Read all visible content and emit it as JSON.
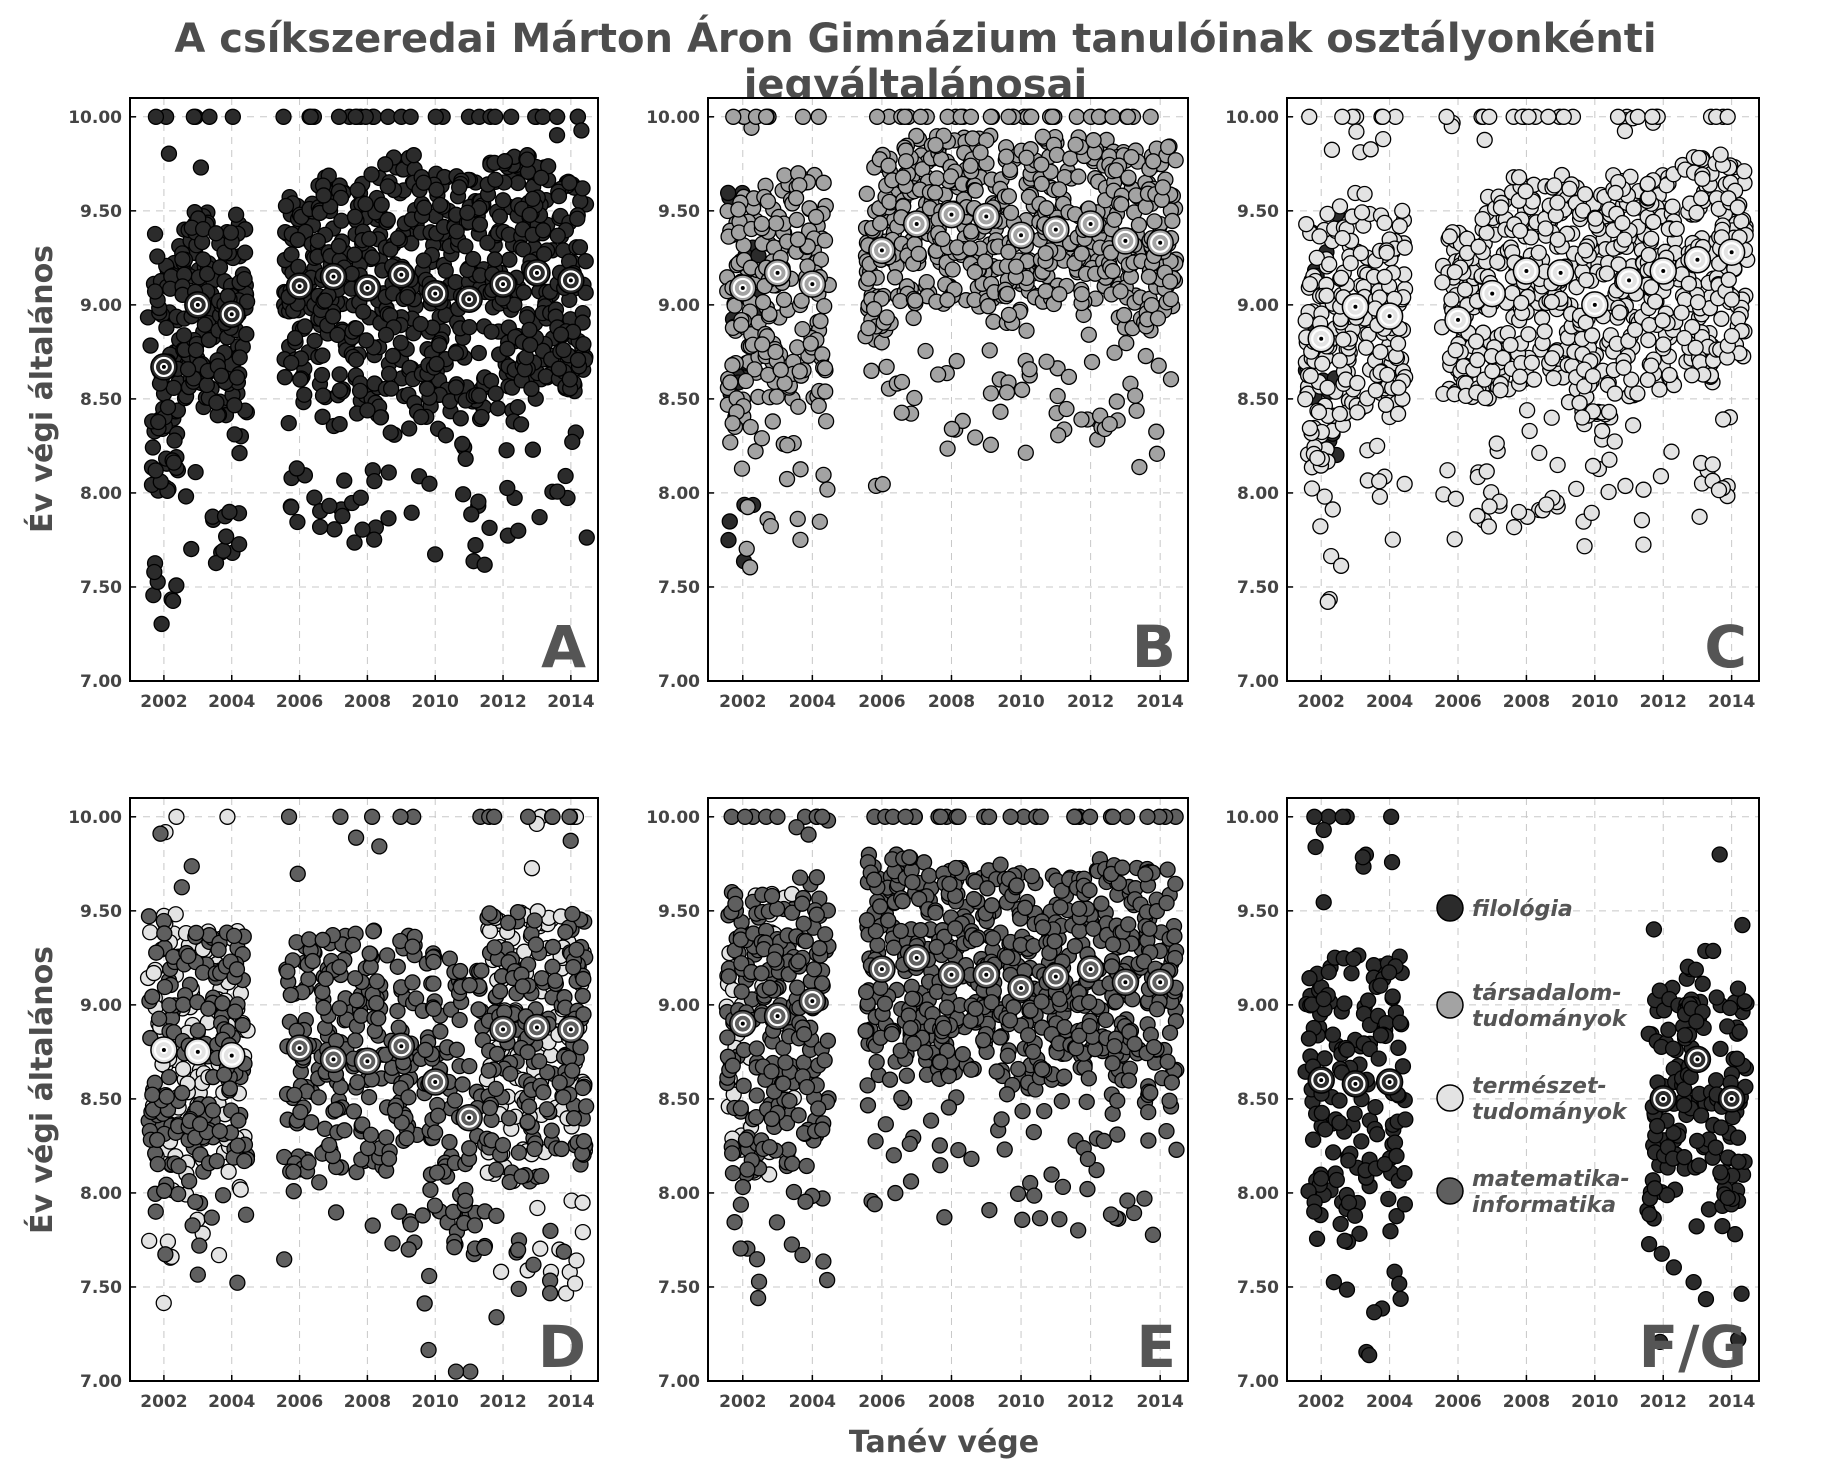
{
  "title": "A csíkszeredai Márton Áron Gimnázium tanulóinak osztályonkénti jegyáltalánosai",
  "ylabel": "Év végi általános",
  "xlabel": "Tanév vége",
  "colors": {
    "filologia": "#2b2b2b",
    "tarsadalom": "#a3a3a3",
    "termeszet": "#e3e3e3",
    "matek": "#5f5f5f"
  },
  "legend": {
    "placement": "inside panel F/G, center",
    "items": [
      {
        "key": "filologia",
        "lines": [
          "filológia"
        ]
      },
      {
        "key": "tarsadalom",
        "lines": [
          "társadalom-",
          "tudományok"
        ]
      },
      {
        "key": "termeszet",
        "lines": [
          "természet-",
          "tudományok"
        ]
      },
      {
        "key": "matek",
        "lines": [
          "matematika-",
          "informatika"
        ]
      }
    ]
  },
  "chart_data": [
    {
      "type": "scatter",
      "panel": "A",
      "xlim": [
        2001,
        2014.8
      ],
      "ylim": [
        7.0,
        10.1
      ],
      "xticks": [
        "2002",
        "2004",
        "2006",
        "2008",
        "2010",
        "2012",
        "2014"
      ],
      "yticks": [
        "7.00",
        "7.50",
        "8.00",
        "8.50",
        "9.00",
        "9.50",
        "10.00"
      ],
      "grid": true,
      "year_spread": {
        "2002": [
          8.0,
          9.4
        ],
        "2003": [
          8.5,
          9.5
        ],
        "2004": [
          8.4,
          9.5
        ],
        "2006": [
          8.6,
          9.6
        ],
        "2007": [
          8.5,
          9.7
        ],
        "2008": [
          8.4,
          9.7
        ],
        "2009": [
          8.5,
          9.8
        ],
        "2010": [
          8.4,
          9.7
        ],
        "2011": [
          8.4,
          9.7
        ],
        "2012": [
          8.5,
          9.8
        ],
        "2013": [
          8.6,
          9.8
        ],
        "2014": [
          8.5,
          9.7
        ]
      },
      "groups": [
        {
          "key": "filologia",
          "years": [
            2002,
            2003,
            2004,
            2006,
            2007,
            2008,
            2009,
            2010,
            2011,
            2012,
            2013,
            2014
          ],
          "count_per_year": 90
        }
      ],
      "means": [
        {
          "x": 2002,
          "y": 8.67,
          "key": "filologia"
        },
        {
          "x": 2003,
          "y": 9.0,
          "key": "filologia"
        },
        {
          "x": 2004,
          "y": 8.95,
          "key": "filologia"
        },
        {
          "x": 2006,
          "y": 9.1,
          "key": "filologia"
        },
        {
          "x": 2007,
          "y": 9.15,
          "key": "filologia"
        },
        {
          "x": 2008,
          "y": 9.09,
          "key": "filologia"
        },
        {
          "x": 2009,
          "y": 9.16,
          "key": "filologia"
        },
        {
          "x": 2010,
          "y": 9.06,
          "key": "filologia"
        },
        {
          "x": 2011,
          "y": 9.03,
          "key": "filologia"
        },
        {
          "x": 2012,
          "y": 9.11,
          "key": "filologia"
        },
        {
          "x": 2013,
          "y": 9.17,
          "key": "filologia"
        },
        {
          "x": 2014,
          "y": 9.13,
          "key": "filologia"
        }
      ]
    },
    {
      "type": "scatter",
      "panel": "B",
      "xlim": [
        2001,
        2014.8
      ],
      "ylim": [
        7.0,
        10.1
      ],
      "xticks": [
        "2002",
        "2004",
        "2006",
        "2008",
        "2010",
        "2012",
        "2014"
      ],
      "yticks": [
        "7.00",
        "7.50",
        "8.00",
        "8.50",
        "9.00",
        "9.50",
        "10.00"
      ],
      "grid": true,
      "year_spread": {
        "2002": [
          8.4,
          9.6
        ],
        "2003": [
          8.5,
          9.7
        ],
        "2004": [
          8.5,
          9.7
        ],
        "2006": [
          8.8,
          9.8
        ],
        "2007": [
          9.0,
          9.9
        ],
        "2008": [
          9.0,
          9.9
        ],
        "2009": [
          9.0,
          9.9
        ],
        "2010": [
          8.9,
          9.85
        ],
        "2011": [
          9.0,
          9.9
        ],
        "2012": [
          9.0,
          9.9
        ],
        "2013": [
          8.9,
          9.85
        ],
        "2014": [
          8.9,
          9.85
        ]
      },
      "groups": [
        {
          "key": "filologia",
          "years": [
            2002
          ],
          "count_per_year": 25
        },
        {
          "key": "tarsadalom",
          "years": [
            2002,
            2003,
            2004,
            2006,
            2007,
            2008,
            2009,
            2010,
            2011,
            2012,
            2013,
            2014
          ],
          "count_per_year": 80
        }
      ],
      "means": [
        {
          "x": 2002,
          "y": 9.09,
          "key": "tarsadalom"
        },
        {
          "x": 2003,
          "y": 9.17,
          "key": "tarsadalom"
        },
        {
          "x": 2004,
          "y": 9.11,
          "key": "tarsadalom"
        },
        {
          "x": 2006,
          "y": 9.29,
          "key": "tarsadalom"
        },
        {
          "x": 2007,
          "y": 9.43,
          "key": "tarsadalom"
        },
        {
          "x": 2008,
          "y": 9.48,
          "key": "tarsadalom"
        },
        {
          "x": 2009,
          "y": 9.47,
          "key": "tarsadalom"
        },
        {
          "x": 2010,
          "y": 9.37,
          "key": "tarsadalom"
        },
        {
          "x": 2011,
          "y": 9.4,
          "key": "tarsadalom"
        },
        {
          "x": 2012,
          "y": 9.43,
          "key": "tarsadalom"
        },
        {
          "x": 2013,
          "y": 9.34,
          "key": "tarsadalom"
        },
        {
          "x": 2014,
          "y": 9.33,
          "key": "tarsadalom"
        }
      ]
    },
    {
      "type": "scatter",
      "panel": "C",
      "xlim": [
        2001,
        2014.8
      ],
      "ylim": [
        7.0,
        10.1
      ],
      "xticks": [
        "2002",
        "2004",
        "2006",
        "2008",
        "2010",
        "2012",
        "2014"
      ],
      "yticks": [
        "7.00",
        "7.50",
        "8.00",
        "8.50",
        "9.00",
        "9.50",
        "10.00"
      ],
      "grid": true,
      "year_spread": {
        "2002": [
          8.1,
          9.5
        ],
        "2003": [
          8.4,
          9.6
        ],
        "2004": [
          8.4,
          9.5
        ],
        "2006": [
          8.5,
          9.4
        ],
        "2007": [
          8.5,
          9.6
        ],
        "2008": [
          8.6,
          9.7
        ],
        "2009": [
          8.6,
          9.7
        ],
        "2010": [
          8.4,
          9.6
        ],
        "2011": [
          8.5,
          9.7
        ],
        "2012": [
          8.6,
          9.7
        ],
        "2013": [
          8.6,
          9.8
        ],
        "2014": [
          8.7,
          9.8
        ]
      },
      "groups": [
        {
          "key": "filologia",
          "years": [
            2002
          ],
          "count_per_year": 20
        },
        {
          "key": "termeszet",
          "years": [
            2002,
            2003,
            2004,
            2006,
            2007,
            2008,
            2009,
            2010,
            2011,
            2012,
            2013,
            2014
          ],
          "count_per_year": 85
        }
      ],
      "means": [
        {
          "x": 2002,
          "y": 8.82,
          "key": "termeszet"
        },
        {
          "x": 2003,
          "y": 8.99,
          "key": "termeszet"
        },
        {
          "x": 2004,
          "y": 8.94,
          "key": "termeszet"
        },
        {
          "x": 2006,
          "y": 8.92,
          "key": "termeszet"
        },
        {
          "x": 2007,
          "y": 9.06,
          "key": "termeszet"
        },
        {
          "x": 2008,
          "y": 9.18,
          "key": "termeszet"
        },
        {
          "x": 2009,
          "y": 9.17,
          "key": "termeszet"
        },
        {
          "x": 2010,
          "y": 9.0,
          "key": "termeszet"
        },
        {
          "x": 2011,
          "y": 9.13,
          "key": "termeszet"
        },
        {
          "x": 2012,
          "y": 9.18,
          "key": "termeszet"
        },
        {
          "x": 2013,
          "y": 9.24,
          "key": "termeszet"
        },
        {
          "x": 2014,
          "y": 9.28,
          "key": "termeszet"
        }
      ]
    },
    {
      "type": "scatter",
      "panel": "D",
      "xlim": [
        2001,
        2014.8
      ],
      "ylim": [
        7.0,
        10.1
      ],
      "xticks": [
        "2002",
        "2004",
        "2006",
        "2008",
        "2010",
        "2012",
        "2014"
      ],
      "yticks": [
        "7.00",
        "7.50",
        "8.00",
        "8.50",
        "9.00",
        "9.50",
        "10.00"
      ],
      "grid": true,
      "year_spread": {
        "2002": [
          8.0,
          9.5
        ],
        "2003": [
          8.1,
          9.4
        ],
        "2004": [
          8.1,
          9.4
        ],
        "2006": [
          8.1,
          9.4
        ],
        "2007": [
          8.1,
          9.4
        ],
        "2008": [
          8.1,
          9.4
        ],
        "2009": [
          8.1,
          9.4
        ],
        "2010": [
          7.9,
          9.3
        ],
        "2011": [
          7.7,
          9.2
        ],
        "2012": [
          8.1,
          9.5
        ],
        "2013": [
          8.2,
          9.5
        ],
        "2014": [
          8.2,
          9.5
        ]
      },
      "groups": [
        {
          "key": "termeszet",
          "years": [
            2002,
            2003,
            2004,
            2012,
            2013,
            2014
          ],
          "count_per_year": 45
        },
        {
          "key": "matek",
          "years": [
            2002,
            2003,
            2004,
            2006,
            2007,
            2008,
            2009,
            2010,
            2011,
            2012,
            2013,
            2014
          ],
          "count_per_year": 60
        }
      ],
      "means": [
        {
          "x": 2002,
          "y": 8.76,
          "key": "termeszet"
        },
        {
          "x": 2003,
          "y": 8.75,
          "key": "termeszet"
        },
        {
          "x": 2004,
          "y": 8.73,
          "key": "termeszet"
        },
        {
          "x": 2006,
          "y": 8.77,
          "key": "matek"
        },
        {
          "x": 2007,
          "y": 8.71,
          "key": "matek"
        },
        {
          "x": 2008,
          "y": 8.7,
          "key": "matek"
        },
        {
          "x": 2009,
          "y": 8.78,
          "key": "matek"
        },
        {
          "x": 2010,
          "y": 8.59,
          "key": "matek"
        },
        {
          "x": 2011,
          "y": 8.4,
          "key": "matek"
        },
        {
          "x": 2012,
          "y": 8.87,
          "key": "matek"
        },
        {
          "x": 2013,
          "y": 8.88,
          "key": "matek"
        },
        {
          "x": 2014,
          "y": 8.87,
          "key": "matek"
        }
      ]
    },
    {
      "type": "scatter",
      "panel": "E",
      "xlim": [
        2001,
        2014.8
      ],
      "ylim": [
        7.0,
        10.1
      ],
      "xticks": [
        "2002",
        "2004",
        "2006",
        "2008",
        "2010",
        "2012",
        "2014"
      ],
      "yticks": [
        "7.00",
        "7.50",
        "8.00",
        "8.50",
        "9.00",
        "9.50",
        "10.00"
      ],
      "grid": true,
      "year_spread": {
        "2002": [
          8.1,
          9.6
        ],
        "2003": [
          8.2,
          9.6
        ],
        "2004": [
          8.3,
          9.7
        ],
        "2006": [
          8.6,
          9.8
        ],
        "2007": [
          8.7,
          9.8
        ],
        "2008": [
          8.6,
          9.75
        ],
        "2009": [
          8.6,
          9.75
        ],
        "2010": [
          8.5,
          9.7
        ],
        "2011": [
          8.6,
          9.7
        ],
        "2012": [
          8.6,
          9.8
        ],
        "2013": [
          8.5,
          9.75
        ],
        "2014": [
          8.5,
          9.75
        ]
      },
      "groups": [
        {
          "key": "termeszet",
          "years": [
            2002,
            2003
          ],
          "count_per_year": 25
        },
        {
          "key": "matek",
          "years": [
            2002,
            2003,
            2004,
            2006,
            2007,
            2008,
            2009,
            2010,
            2011,
            2012,
            2013,
            2014
          ],
          "count_per_year": 85
        }
      ],
      "means": [
        {
          "x": 2002,
          "y": 8.9,
          "key": "matek"
        },
        {
          "x": 2003,
          "y": 8.94,
          "key": "matek"
        },
        {
          "x": 2004,
          "y": 9.02,
          "key": "matek"
        },
        {
          "x": 2006,
          "y": 9.19,
          "key": "matek"
        },
        {
          "x": 2007,
          "y": 9.25,
          "key": "matek"
        },
        {
          "x": 2008,
          "y": 9.16,
          "key": "matek"
        },
        {
          "x": 2009,
          "y": 9.16,
          "key": "matek"
        },
        {
          "x": 2010,
          "y": 9.09,
          "key": "matek"
        },
        {
          "x": 2011,
          "y": 9.15,
          "key": "matek"
        },
        {
          "x": 2012,
          "y": 9.19,
          "key": "matek"
        },
        {
          "x": 2013,
          "y": 9.12,
          "key": "matek"
        },
        {
          "x": 2014,
          "y": 9.12,
          "key": "matek"
        }
      ]
    },
    {
      "type": "scatter",
      "panel": "F/G",
      "xlim": [
        2001,
        2014.8
      ],
      "ylim": [
        7.0,
        10.1
      ],
      "xticks": [
        "2002",
        "2004",
        "2006",
        "2008",
        "2010",
        "2012",
        "2014"
      ],
      "yticks": [
        "7.00",
        "7.50",
        "8.00",
        "8.50",
        "9.00",
        "9.50",
        "10.00"
      ],
      "grid": true,
      "year_spread": {
        "2002": [
          7.9,
          9.3
        ],
        "2003": [
          7.9,
          9.3
        ],
        "2004": [
          7.9,
          9.3
        ],
        "2012": [
          7.9,
          9.1
        ],
        "2013": [
          8.1,
          9.3
        ],
        "2014": [
          7.9,
          9.1
        ]
      },
      "groups": [
        {
          "key": "filologia",
          "years": [
            2002,
            2003,
            2004,
            2012,
            2013,
            2014
          ],
          "count_per_year": 60
        }
      ],
      "means": [
        {
          "x": 2002,
          "y": 8.6,
          "key": "filologia"
        },
        {
          "x": 2003,
          "y": 8.58,
          "key": "filologia"
        },
        {
          "x": 2004,
          "y": 8.59,
          "key": "filologia"
        },
        {
          "x": 2012,
          "y": 8.5,
          "key": "filologia"
        },
        {
          "x": 2013,
          "y": 8.71,
          "key": "filologia"
        },
        {
          "x": 2014,
          "y": 8.5,
          "key": "filologia"
        }
      ]
    }
  ]
}
